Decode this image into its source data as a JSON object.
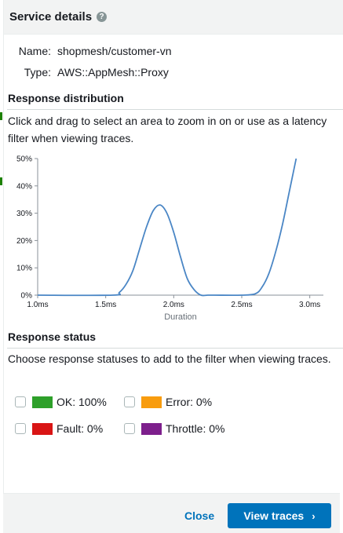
{
  "header": {
    "title": "Service details",
    "help_icon": "question-circle-icon"
  },
  "details": {
    "name_label": "Name:",
    "name_value": "shopmesh/customer-vn",
    "type_label": "Type:",
    "type_value": "AWS::AppMesh::Proxy"
  },
  "distribution": {
    "title": "Response distribution",
    "description": "Click and drag to select an area to zoom in on or use as a latency filter when viewing traces."
  },
  "chart_data": {
    "type": "line",
    "xlabel": "Duration",
    "ylabel": "",
    "x_ticks": [
      "1.0ms",
      "1.5ms",
      "2.0ms",
      "2.5ms",
      "3.0ms"
    ],
    "y_ticks": [
      "0%",
      "10%",
      "20%",
      "30%",
      "40%",
      "50%"
    ],
    "xlim": [
      1.0,
      3.1
    ],
    "ylim": [
      0,
      50
    ],
    "series": [
      {
        "color": "#4a86c5",
        "x": [
          1.0,
          1.55,
          1.6,
          1.65,
          1.7,
          1.75,
          1.8,
          1.85,
          1.9,
          1.95,
          2.0,
          2.05,
          2.1,
          2.15,
          2.2,
          2.25,
          2.3,
          2.5,
          2.6,
          2.65,
          2.7,
          2.75,
          2.8,
          2.85,
          2.9
        ],
        "y": [
          0,
          0,
          1,
          4,
          9,
          17,
          25,
          31,
          33,
          30,
          23,
          14,
          6,
          2,
          0,
          0,
          0,
          0,
          0.5,
          3,
          8,
          16,
          26,
          38,
          50
        ]
      }
    ]
  },
  "status": {
    "title": "Response status",
    "description": "Choose response statuses to add to the filter when viewing traces.",
    "items": [
      {
        "label": "OK: 100%",
        "color": "#2ea02a"
      },
      {
        "label": "Error: 0%",
        "color": "#f89c0e"
      },
      {
        "label": "Fault: 0%",
        "color": "#d91515"
      },
      {
        "label": "Throttle: 0%",
        "color": "#7d1f8c"
      }
    ]
  },
  "footer": {
    "close_label": "Close",
    "view_label": "View traces"
  }
}
